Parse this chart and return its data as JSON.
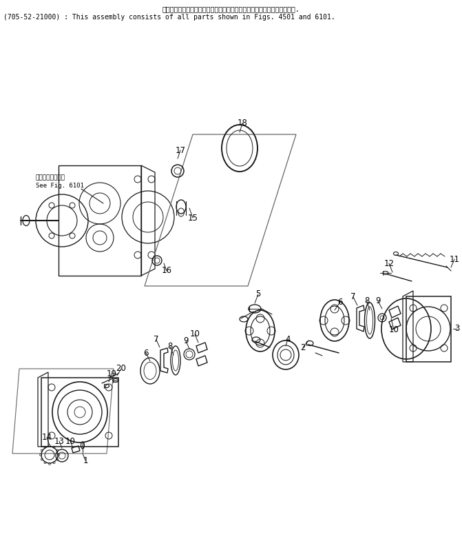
{
  "title_line1": "このアセンブリの構成部品は第４５０１図および第６１０１図を含みます.",
  "title_line2": "(705-52-21000) : This assembly consists of all parts shown in Figs. 4501 and 6101.",
  "see_fig_jp": "第６１０１図参照",
  "see_fig_en": "See Fig. 6101",
  "bg_color": "#ffffff",
  "line_color": "#1a1a1a",
  "font_size_title": 7.0,
  "font_size_label": 8.5,
  "font_size_see": 6.5
}
